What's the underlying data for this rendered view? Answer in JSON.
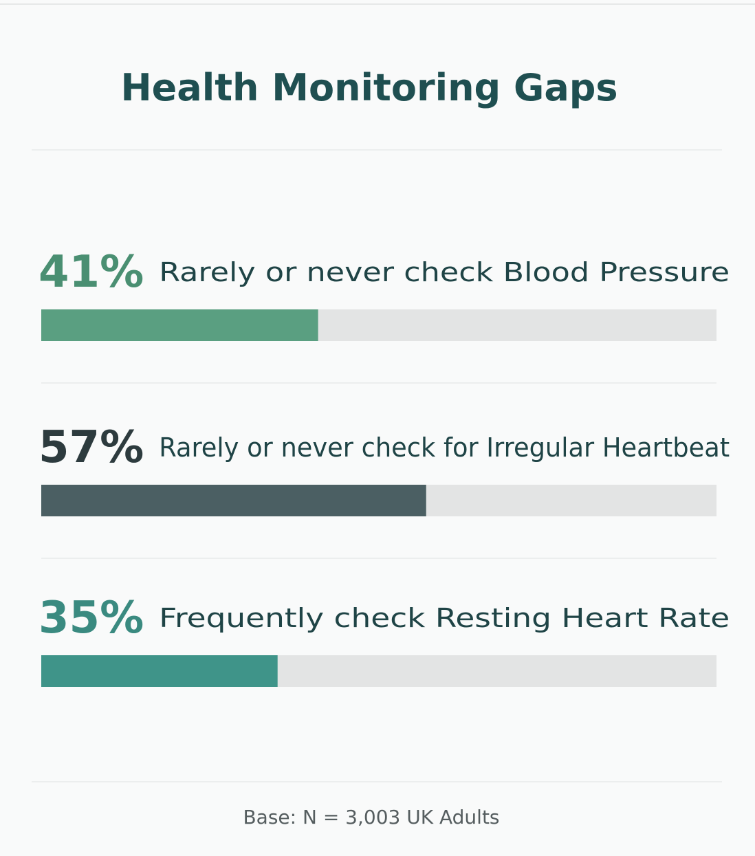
{
  "chart_data": {
    "type": "bar",
    "orientation": "horizontal",
    "title": "Health Monitoring Gaps",
    "categories": [
      "Rarely or never check Blood Pressure",
      "Rarely or never check for Irregular Heartbeat",
      "Frequently check Resting Heart Rate"
    ],
    "values": [
      41,
      57,
      35
    ],
    "value_labels": [
      "41%",
      "57%",
      "35%"
    ],
    "colors": [
      "#5a9f81",
      "#4b5f63",
      "#3f9489"
    ],
    "label_colors": [
      "#4a8f72",
      "#2d3b3e",
      "#3a8a80"
    ],
    "xlim": [
      0,
      100
    ],
    "footnote": "Base: N = 3,003 UK Adults"
  }
}
